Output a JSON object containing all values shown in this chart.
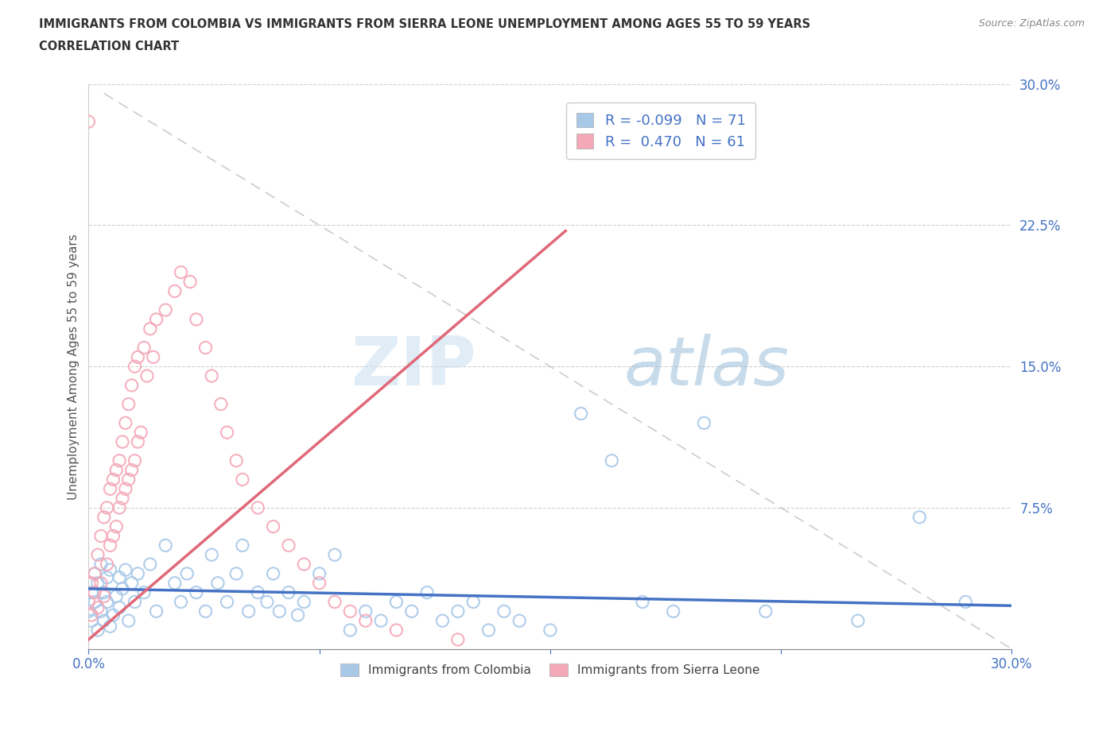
{
  "title_line1": "IMMIGRANTS FROM COLOMBIA VS IMMIGRANTS FROM SIERRA LEONE UNEMPLOYMENT AMONG AGES 55 TO 59 YEARS",
  "title_line2": "CORRELATION CHART",
  "source_text": "Source: ZipAtlas.com",
  "ylabel": "Unemployment Among Ages 55 to 59 years",
  "xlim": [
    0.0,
    0.3
  ],
  "ylim": [
    0.0,
    0.3
  ],
  "colombia_color": "#a8c8e8",
  "sierra_color": "#f4a8b8",
  "colombia_line_color": "#4472c4",
  "sierra_line_color": "#e06878",
  "diagonal_color": "#cccccc",
  "R_colombia": -0.099,
  "N_colombia": 71,
  "R_sierra": 0.47,
  "N_sierra": 61,
  "legend_label_colombia": "Immigrants from Colombia",
  "legend_label_sierra": "Immigrants from Sierra Leone",
  "watermark_zip": "ZIP",
  "watermark_atlas": "atlas",
  "colombia_scatter_x": [
    0.0,
    0.001,
    0.001,
    0.002,
    0.002,
    0.003,
    0.003,
    0.004,
    0.004,
    0.005,
    0.005,
    0.006,
    0.006,
    0.007,
    0.007,
    0.008,
    0.009,
    0.01,
    0.01,
    0.011,
    0.012,
    0.013,
    0.014,
    0.015,
    0.016,
    0.018,
    0.02,
    0.022,
    0.025,
    0.028,
    0.03,
    0.032,
    0.035,
    0.038,
    0.04,
    0.042,
    0.045,
    0.048,
    0.05,
    0.052,
    0.055,
    0.058,
    0.06,
    0.062,
    0.065,
    0.068,
    0.07,
    0.075,
    0.08,
    0.085,
    0.09,
    0.095,
    0.1,
    0.105,
    0.11,
    0.115,
    0.12,
    0.125,
    0.13,
    0.135,
    0.14,
    0.15,
    0.16,
    0.17,
    0.18,
    0.19,
    0.2,
    0.22,
    0.25,
    0.27,
    0.285
  ],
  "colombia_scatter_y": [
    0.02,
    0.015,
    0.03,
    0.025,
    0.04,
    0.01,
    0.035,
    0.02,
    0.045,
    0.015,
    0.03,
    0.025,
    0.038,
    0.012,
    0.042,
    0.018,
    0.028,
    0.022,
    0.038,
    0.032,
    0.042,
    0.015,
    0.035,
    0.025,
    0.04,
    0.03,
    0.045,
    0.02,
    0.055,
    0.035,
    0.025,
    0.04,
    0.03,
    0.02,
    0.05,
    0.035,
    0.025,
    0.04,
    0.055,
    0.02,
    0.03,
    0.025,
    0.04,
    0.02,
    0.03,
    0.018,
    0.025,
    0.04,
    0.05,
    0.01,
    0.02,
    0.015,
    0.025,
    0.02,
    0.03,
    0.015,
    0.02,
    0.025,
    0.01,
    0.02,
    0.015,
    0.01,
    0.125,
    0.1,
    0.025,
    0.02,
    0.12,
    0.02,
    0.015,
    0.07,
    0.025
  ],
  "sierra_scatter_x": [
    0.0,
    0.001,
    0.001,
    0.002,
    0.002,
    0.003,
    0.003,
    0.004,
    0.004,
    0.005,
    0.005,
    0.006,
    0.006,
    0.007,
    0.007,
    0.008,
    0.008,
    0.009,
    0.009,
    0.01,
    0.01,
    0.011,
    0.011,
    0.012,
    0.012,
    0.013,
    0.013,
    0.014,
    0.014,
    0.015,
    0.015,
    0.016,
    0.016,
    0.017,
    0.018,
    0.019,
    0.02,
    0.021,
    0.022,
    0.025,
    0.028,
    0.03,
    0.033,
    0.035,
    0.038,
    0.04,
    0.043,
    0.045,
    0.048,
    0.05,
    0.055,
    0.06,
    0.065,
    0.07,
    0.075,
    0.08,
    0.085,
    0.09,
    0.1,
    0.12,
    0.0
  ],
  "sierra_scatter_y": [
    0.025,
    0.018,
    0.035,
    0.03,
    0.04,
    0.022,
    0.05,
    0.035,
    0.06,
    0.028,
    0.07,
    0.045,
    0.075,
    0.055,
    0.085,
    0.06,
    0.09,
    0.065,
    0.095,
    0.075,
    0.1,
    0.08,
    0.11,
    0.085,
    0.12,
    0.09,
    0.13,
    0.095,
    0.14,
    0.1,
    0.15,
    0.11,
    0.155,
    0.115,
    0.16,
    0.145,
    0.17,
    0.155,
    0.175,
    0.18,
    0.19,
    0.2,
    0.195,
    0.175,
    0.16,
    0.145,
    0.13,
    0.115,
    0.1,
    0.09,
    0.075,
    0.065,
    0.055,
    0.045,
    0.035,
    0.025,
    0.02,
    0.015,
    0.01,
    0.005,
    0.28
  ]
}
